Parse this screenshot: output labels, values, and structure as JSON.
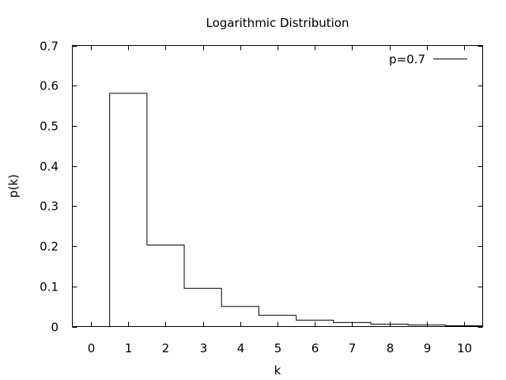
{
  "chart_data": {
    "type": "line",
    "style": "steps",
    "title": "Logarithmic Distribution",
    "xlabel": "k",
    "ylabel": "p(k)",
    "xlim": [
      -0.5,
      10.5
    ],
    "ylim": [
      0,
      0.7
    ],
    "x_ticks": [
      "0",
      "1",
      "2",
      "3",
      "4",
      "5",
      "6",
      "7",
      "8",
      "9",
      "10"
    ],
    "y_ticks": [
      "0",
      "0.1",
      "0.2",
      "0.3",
      "0.4",
      "0.5",
      "0.6",
      "0.7"
    ],
    "grid": false,
    "legend_position": "top-right",
    "series": [
      {
        "name": "p=0.7",
        "color": "#000000",
        "x": [
          0,
          1,
          2,
          3,
          4,
          5,
          6,
          7,
          8,
          9,
          10
        ],
        "values": [
          0,
          0.581,
          0.203,
          0.095,
          0.05,
          0.028,
          0.016,
          0.01,
          0.006,
          0.004,
          0.002
        ]
      }
    ]
  }
}
